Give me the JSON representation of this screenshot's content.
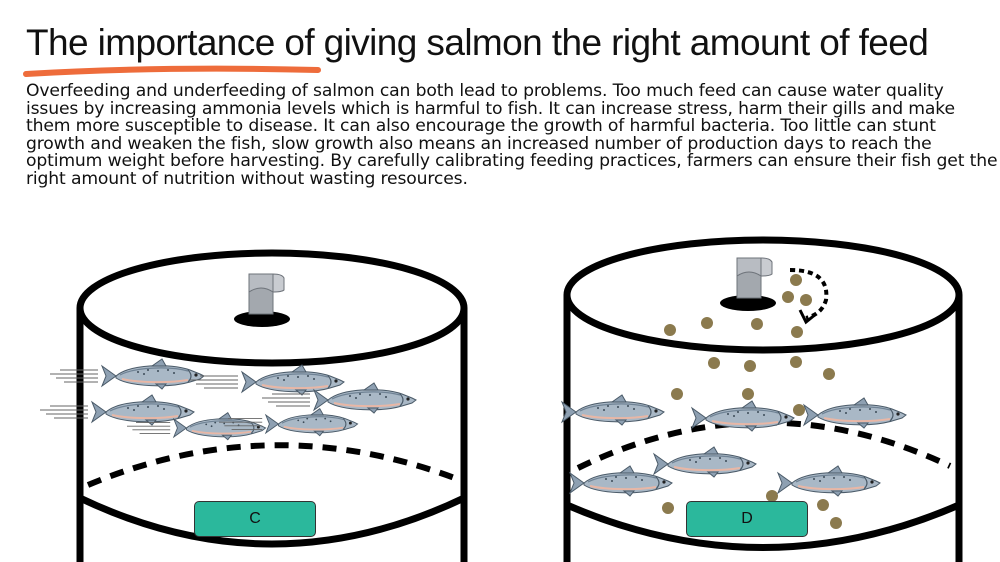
{
  "slide": {
    "title": "The importance of giving salmon the right amount of feed",
    "body": "Overfeeding and underfeeding of salmon can both lead to problems. Too much feed can cause water quality issues by increasing ammonia levels which is harmful to fish. It can increase stress, harm their gills and make them more susceptible to disease. It can also encourage the growth of harmful bacteria. Too little can stunt growth and weaken the fish, slow growth also means an increased number of production days to reach the optimum weight before harvesting. By carefully calibrating feeding practices, farmers can ensure their fish get the right amount of nutrition without wasting resources.",
    "accent_color": "#ee6c3b"
  },
  "tanks": [
    {
      "label": "C",
      "state": "underfed",
      "fish_speed_lines": true,
      "feed_pellets": false,
      "label_color": "#2bb89c"
    },
    {
      "label": "D",
      "state": "overfed",
      "fish_speed_lines": false,
      "feed_pellets": true,
      "pellet_color": "#8b7a4e",
      "label_color": "#2bb89c"
    }
  ],
  "icons": [
    "feed-pipe-icon",
    "salmon-icon",
    "feed-pellet-icon",
    "dispense-arrow-icon"
  ]
}
